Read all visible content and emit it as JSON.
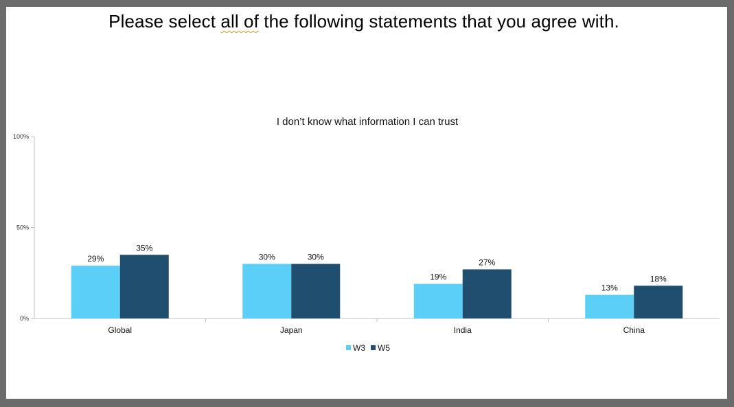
{
  "slide": {
    "title_before": "Please select ",
    "title_emph": "all of",
    "title_after": " the following statements that you agree with."
  },
  "chart_data": {
    "type": "bar",
    "title": "I don’t know what information I can trust",
    "categories": [
      "Global",
      "Japan",
      "India",
      "China"
    ],
    "series": [
      {
        "name": "W3",
        "values": [
          29,
          30,
          19,
          13
        ],
        "color": "#5bcff7"
      },
      {
        "name": "W5",
        "values": [
          35,
          30,
          27,
          18
        ],
        "color": "#1f4e6e"
      }
    ],
    "data_labels": true,
    "ylim": [
      0,
      100
    ],
    "yticks": [
      0,
      50,
      100
    ],
    "ytick_labels": [
      "0%",
      "50%",
      "100%"
    ],
    "value_suffix": "%",
    "grid": false,
    "legend": "bottom"
  }
}
